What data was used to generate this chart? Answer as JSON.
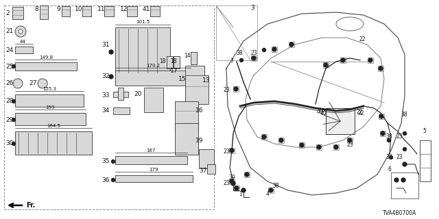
{
  "bg_color": "#ffffff",
  "diagram_code": "TVA4B0700A",
  "line_color": "#333333",
  "text_color": "#111111",
  "gray_fill": "#d8d8d8",
  "dark_gray": "#555555"
}
